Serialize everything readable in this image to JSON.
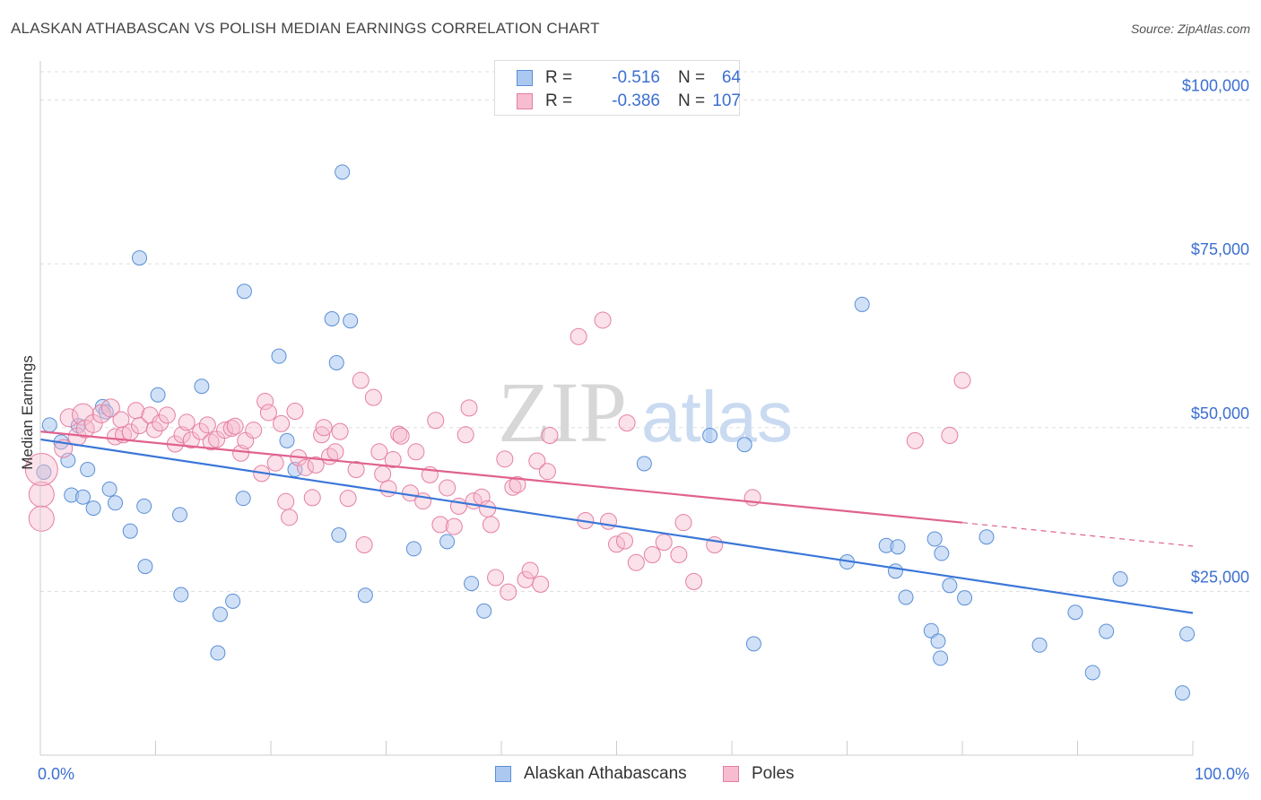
{
  "title": "ALASKAN ATHABASCAN VS POLISH MEDIAN EARNINGS CORRELATION CHART",
  "source": "Source: ZipAtlas.com",
  "watermark": {
    "zip": "ZIP",
    "atlas": "atlas"
  },
  "legend": {
    "r_label": "R =",
    "n_label": "N =",
    "rows": [
      {
        "r": "-0.516",
        "n": "64",
        "fill": "#aac8f0",
        "stroke": "#5b8fd6"
      },
      {
        "r": "-0.386",
        "n": "107",
        "fill": "#f7bccf",
        "stroke": "#e57fa3"
      }
    ]
  },
  "colors": {
    "value_text": "#3b6fd1",
    "blue_line": "#3a76d8",
    "pink_line": "#e0628e",
    "grid": "#dddddd"
  },
  "chart_data": {
    "type": "scatter",
    "title": "ALASKAN ATHABASCAN VS POLISH MEDIAN EARNINGS CORRELATION CHART",
    "xlabel": "",
    "ylabel": "Median Earnings",
    "xlim": [
      0,
      100
    ],
    "ylim": [
      0,
      105000
    ],
    "x_tick_labels": [
      "0.0%",
      "100.0%"
    ],
    "y_ticks": [
      {
        "value": 25000,
        "label": "$25,000"
      },
      {
        "value": 50000,
        "label": "$50,000"
      },
      {
        "value": 75000,
        "label": "$75,000"
      },
      {
        "value": 100000,
        "label": "$100,000"
      }
    ],
    "grid": true,
    "legend_position": "top-center",
    "series": [
      {
        "name": "Alaskan Athabascans",
        "color": "#aac8f0",
        "stroke": "#5b8fd6",
        "trend": {
          "x": [
            0,
            100
          ],
          "y": [
            48200,
            21700
          ],
          "dashed_extension": false
        },
        "points": [
          [
            0.3,
            43200
          ],
          [
            0.8,
            50400
          ],
          [
            1.8,
            47800
          ],
          [
            2.4,
            45000
          ],
          [
            2.7,
            39700
          ],
          [
            3.3,
            50300
          ],
          [
            3.7,
            39400
          ],
          [
            4.1,
            43600
          ],
          [
            4.6,
            37700
          ],
          [
            5.4,
            53200
          ],
          [
            5.7,
            52400
          ],
          [
            6.0,
            40600
          ],
          [
            6.5,
            38500
          ],
          [
            7.8,
            34200
          ],
          [
            8.6,
            75900
          ],
          [
            9.0,
            38000
          ],
          [
            9.1,
            28800
          ],
          [
            10.2,
            55000
          ],
          [
            12.1,
            36700
          ],
          [
            12.2,
            24500
          ],
          [
            14.0,
            56300
          ],
          [
            15.4,
            15600
          ],
          [
            15.6,
            21500
          ],
          [
            16.7,
            23500
          ],
          [
            17.6,
            39200
          ],
          [
            17.7,
            70800
          ],
          [
            20.7,
            60900
          ],
          [
            21.4,
            48000
          ],
          [
            22.1,
            43600
          ],
          [
            25.3,
            66600
          ],
          [
            25.7,
            59900
          ],
          [
            25.9,
            33600
          ],
          [
            26.2,
            89000
          ],
          [
            26.9,
            66300
          ],
          [
            28.2,
            24400
          ],
          [
            32.4,
            31500
          ],
          [
            35.3,
            32600
          ],
          [
            37.4,
            26200
          ],
          [
            38.5,
            22000
          ],
          [
            52.4,
            44500
          ],
          [
            58.1,
            48800
          ],
          [
            61.1,
            47400
          ],
          [
            61.9,
            17000
          ],
          [
            70.0,
            29500
          ],
          [
            71.3,
            68800
          ],
          [
            73.4,
            32000
          ],
          [
            74.2,
            28100
          ],
          [
            74.4,
            31800
          ],
          [
            75.1,
            24100
          ],
          [
            77.3,
            19000
          ],
          [
            77.6,
            33000
          ],
          [
            77.9,
            17400
          ],
          [
            78.2,
            30800
          ],
          [
            78.1,
            14800
          ],
          [
            78.9,
            25900
          ],
          [
            80.2,
            24000
          ],
          [
            82.1,
            33300
          ],
          [
            86.7,
            16800
          ],
          [
            89.8,
            21800
          ],
          [
            91.3,
            12600
          ],
          [
            92.5,
            18900
          ],
          [
            93.7,
            26900
          ],
          [
            99.1,
            9500
          ],
          [
            99.5,
            18500
          ]
        ]
      },
      {
        "name": "Poles",
        "color": "#f7bccf",
        "stroke": "#e57fa3",
        "trend": {
          "x": [
            0,
            80
          ],
          "y": [
            49400,
            35500
          ],
          "dashed_to": [
            100,
            31900
          ]
        },
        "points": [
          [
            0.1,
            39800,
            14
          ],
          [
            0.1,
            43600,
            18
          ],
          [
            0.1,
            36100,
            14
          ],
          [
            2.0,
            46800,
            10
          ],
          [
            2.5,
            51500,
            10
          ],
          [
            3.2,
            48600,
            10
          ],
          [
            3.7,
            52000,
            12
          ],
          [
            3.9,
            49800,
            10
          ],
          [
            4.6,
            50600,
            10
          ],
          [
            5.3,
            52100,
            10
          ],
          [
            6.1,
            53000,
            10
          ],
          [
            6.5,
            48600,
            9
          ],
          [
            7.0,
            51200,
            9
          ],
          [
            7.2,
            48900,
            9
          ],
          [
            7.8,
            49300,
            9
          ],
          [
            8.3,
            52600,
            9
          ],
          [
            8.6,
            50300,
            9
          ],
          [
            9.5,
            51900,
            9
          ],
          [
            9.9,
            49700,
            9
          ],
          [
            10.4,
            50700,
            9
          ],
          [
            11.0,
            51900,
            9
          ],
          [
            11.7,
            47500,
            9
          ],
          [
            12.3,
            48900,
            9
          ],
          [
            12.7,
            50800,
            9
          ],
          [
            13.1,
            48100,
            9
          ],
          [
            13.9,
            49400,
            9
          ],
          [
            14.5,
            50400,
            9
          ],
          [
            14.8,
            47800,
            9
          ],
          [
            15.3,
            48200,
            9
          ],
          [
            16.0,
            49600,
            9
          ],
          [
            16.6,
            49900,
            9
          ],
          [
            16.9,
            50200,
            9
          ],
          [
            17.4,
            46100,
            9
          ],
          [
            17.8,
            48000,
            9
          ],
          [
            18.5,
            49600,
            9
          ],
          [
            19.2,
            43000,
            9
          ],
          [
            19.5,
            54000,
            9
          ],
          [
            19.8,
            52300,
            9
          ],
          [
            20.4,
            44600,
            9
          ],
          [
            20.9,
            50600,
            9
          ],
          [
            21.3,
            38700,
            9
          ],
          [
            21.6,
            36300,
            9
          ],
          [
            22.1,
            52500,
            9
          ],
          [
            22.4,
            45400,
            9
          ],
          [
            23.0,
            43900,
            9
          ],
          [
            23.6,
            39300,
            9
          ],
          [
            23.9,
            44300,
            9
          ],
          [
            24.4,
            48900,
            9
          ],
          [
            24.6,
            50000,
            9
          ],
          [
            25.1,
            45600,
            9
          ],
          [
            25.6,
            46300,
            9
          ],
          [
            26.0,
            49400,
            9
          ],
          [
            26.7,
            39200,
            9
          ],
          [
            27.4,
            43600,
            9
          ],
          [
            27.8,
            57200,
            9
          ],
          [
            28.1,
            32100,
            9
          ],
          [
            28.9,
            54600,
            9
          ],
          [
            29.4,
            46300,
            9
          ],
          [
            29.7,
            42900,
            9
          ],
          [
            30.2,
            40700,
            9
          ],
          [
            30.6,
            45100,
            9
          ],
          [
            31.1,
            49000,
            9
          ],
          [
            31.3,
            48700,
            9
          ],
          [
            32.1,
            40000,
            9
          ],
          [
            32.6,
            46300,
            9
          ],
          [
            33.2,
            38800,
            9
          ],
          [
            33.8,
            42800,
            9
          ],
          [
            34.3,
            51100,
            9
          ],
          [
            34.7,
            35200,
            9
          ],
          [
            35.3,
            40800,
            9
          ],
          [
            35.9,
            34900,
            9
          ],
          [
            36.3,
            38000,
            9
          ],
          [
            36.9,
            48900,
            9
          ],
          [
            37.2,
            53000,
            9
          ],
          [
            37.6,
            38800,
            9
          ],
          [
            38.3,
            39400,
            9
          ],
          [
            38.8,
            37600,
            9
          ],
          [
            39.1,
            35200,
            9
          ],
          [
            39.5,
            27100,
            9
          ],
          [
            40.3,
            45200,
            9
          ],
          [
            40.6,
            24900,
            9
          ],
          [
            41.0,
            40900,
            9
          ],
          [
            41.4,
            41300,
            9
          ],
          [
            42.1,
            26800,
            9
          ],
          [
            42.5,
            28200,
            9
          ],
          [
            43.1,
            44900,
            9
          ],
          [
            43.4,
            26100,
            9
          ],
          [
            44.0,
            43300,
            9
          ],
          [
            44.2,
            48800,
            9
          ],
          [
            46.7,
            63900,
            9
          ],
          [
            47.3,
            35800,
            9
          ],
          [
            48.8,
            66400,
            9
          ],
          [
            49.3,
            35700,
            9
          ],
          [
            50.0,
            32200,
            9
          ],
          [
            50.7,
            32700,
            9
          ],
          [
            50.9,
            50700,
            9
          ],
          [
            51.7,
            29400,
            9
          ],
          [
            53.1,
            30600,
            9
          ],
          [
            54.1,
            32500,
            9
          ],
          [
            55.4,
            30600,
            9
          ],
          [
            55.8,
            35500,
            9
          ],
          [
            56.7,
            26500,
            9
          ],
          [
            58.5,
            32100,
            9
          ],
          [
            61.8,
            39300,
            9
          ],
          [
            75.9,
            48000,
            9
          ],
          [
            78.9,
            48800,
            9
          ],
          [
            80.0,
            57200,
            9
          ]
        ]
      }
    ]
  },
  "bottom_legend": [
    "Alaskan Athabascans",
    "Poles"
  ]
}
